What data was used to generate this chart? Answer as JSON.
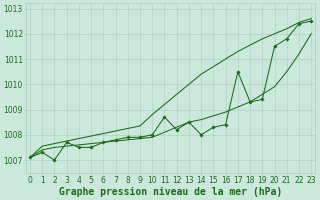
{
  "title": "Graphe pression niveau de la mer (hPa)",
  "hours": [
    0,
    1,
    2,
    3,
    4,
    5,
    6,
    7,
    8,
    9,
    10,
    11,
    12,
    13,
    14,
    15,
    16,
    17,
    18,
    19,
    20,
    21,
    22,
    23
  ],
  "line_main": [
    1007.1,
    1007.3,
    1007.0,
    1007.7,
    1007.5,
    1007.5,
    1007.7,
    1007.8,
    1007.9,
    1007.9,
    1008.0,
    1008.7,
    1008.2,
    1008.5,
    1008.0,
    1008.3,
    1008.4,
    1010.5,
    1009.3,
    1009.4,
    1011.5,
    1011.8,
    1012.4,
    1012.5
  ],
  "line_upper": [
    1007.1,
    1007.55,
    1007.65,
    1007.75,
    1007.85,
    1007.95,
    1008.05,
    1008.15,
    1008.25,
    1008.35,
    1008.8,
    1009.2,
    1009.6,
    1010.0,
    1010.4,
    1010.7,
    1011.0,
    1011.3,
    1011.55,
    1011.8,
    1012.0,
    1012.2,
    1012.45,
    1012.6
  ],
  "line_lower": [
    1007.1,
    1007.4,
    1007.5,
    1007.55,
    1007.6,
    1007.65,
    1007.7,
    1007.75,
    1007.8,
    1007.85,
    1007.9,
    1008.1,
    1008.3,
    1008.5,
    1008.6,
    1008.75,
    1008.9,
    1009.1,
    1009.3,
    1009.6,
    1009.9,
    1010.5,
    1011.2,
    1012.0
  ],
  "ylim": [
    1006.5,
    1013.2
  ],
  "xlim": [
    -0.3,
    23.3
  ],
  "yticks": [
    1007,
    1008,
    1009,
    1010,
    1011,
    1012,
    1013
  ],
  "xticks": [
    0,
    1,
    2,
    3,
    4,
    5,
    6,
    7,
    8,
    9,
    10,
    11,
    12,
    13,
    14,
    15,
    16,
    17,
    18,
    19,
    20,
    21,
    22,
    23
  ],
  "line_color": "#1a6b1a",
  "bg_color": "#cce8dc",
  "grid_color": "#aaccbb",
  "text_color": "#1a6b1a",
  "title_fontsize": 7,
  "tick_fontsize": 5.5
}
